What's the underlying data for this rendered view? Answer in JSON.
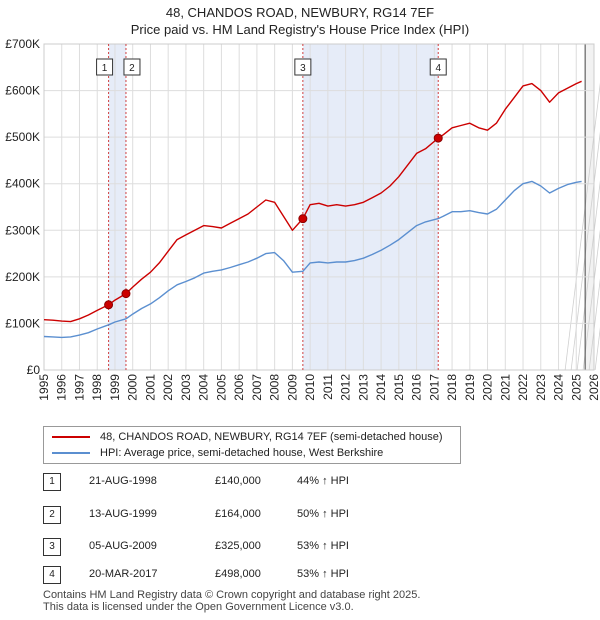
{
  "chart_data": {
    "type": "line",
    "title": "48, CHANDOS ROAD, NEWBURY, RG14 7EF",
    "subtitle": "Price paid vs. HM Land Registry's House Price Index (HPI)",
    "xlim": [
      1995,
      2026
    ],
    "ylim": [
      0,
      700000
    ],
    "y_ticks": [
      0,
      100000,
      200000,
      300000,
      400000,
      500000,
      600000,
      700000
    ],
    "y_tick_labels": [
      "£0",
      "£100K",
      "£200K",
      "£300K",
      "£400K",
      "£500K",
      "£600K",
      "£700K"
    ],
    "x_ticks": [
      1995,
      1996,
      1997,
      1998,
      1999,
      2000,
      2001,
      2002,
      2003,
      2004,
      2005,
      2006,
      2007,
      2008,
      2009,
      2010,
      2011,
      2012,
      2013,
      2014,
      2015,
      2016,
      2017,
      2018,
      2019,
      2020,
      2021,
      2022,
      2023,
      2024,
      2025,
      2026
    ],
    "x_tick_labels": [
      "1995",
      "1996",
      "1997",
      "1998",
      "1999",
      "2000",
      "2001",
      "2002",
      "2003",
      "2004",
      "2005",
      "2006",
      "2007",
      "2008",
      "2009",
      "2010",
      "2011",
      "2012",
      "2013",
      "2014",
      "2015",
      "2016",
      "2017",
      "2018",
      "2019",
      "2020",
      "2021",
      "2022",
      "2023",
      "2024",
      "2025",
      "2026"
    ],
    "grid": true,
    "shaded_ranges": [
      [
        1998.64,
        1999.62
      ],
      [
        2009.59,
        2017.22
      ]
    ],
    "future_from": 2025.5,
    "series": [
      {
        "name": "48, CHANDOS ROAD, NEWBURY, RG14 7EF (semi-detached house)",
        "color": "#cc0000",
        "x": [
          1995,
          1995.5,
          1996,
          1996.5,
          1997,
          1997.5,
          1998,
          1998.64,
          1999,
          1999.62,
          2000,
          2000.5,
          2001,
          2001.5,
          2002,
          2002.5,
          2003,
          2003.5,
          2004,
          2004.5,
          2005,
          2005.5,
          2006,
          2006.5,
          2007,
          2007.5,
          2008,
          2008.5,
          2009,
          2009.59,
          2010,
          2010.5,
          2011,
          2011.5,
          2012,
          2012.5,
          2013,
          2013.5,
          2014,
          2014.5,
          2015,
          2015.5,
          2016,
          2016.5,
          2017.22,
          2017.5,
          2018,
          2018.5,
          2019,
          2019.5,
          2020,
          2020.5,
          2021,
          2021.5,
          2022,
          2022.5,
          2023,
          2023.5,
          2024,
          2024.5,
          2025,
          2025.3
        ],
        "values": [
          108000,
          107000,
          105000,
          104000,
          110000,
          118000,
          128000,
          140000,
          150000,
          164000,
          178000,
          195000,
          210000,
          230000,
          255000,
          280000,
          290000,
          300000,
          310000,
          308000,
          305000,
          315000,
          325000,
          335000,
          350000,
          365000,
          360000,
          330000,
          300000,
          325000,
          355000,
          358000,
          352000,
          355000,
          352000,
          355000,
          360000,
          370000,
          380000,
          395000,
          415000,
          440000,
          465000,
          475000,
          498000,
          505000,
          520000,
          525000,
          530000,
          520000,
          515000,
          530000,
          560000,
          585000,
          610000,
          615000,
          600000,
          575000,
          595000,
          605000,
          615000,
          620000
        ]
      },
      {
        "name": "HPI: Average price, semi-detached house, West Berkshire",
        "color": "#5b8fd0",
        "x": [
          1995,
          1995.5,
          1996,
          1996.5,
          1997,
          1997.5,
          1998,
          1998.64,
          1999,
          1999.62,
          2000,
          2000.5,
          2001,
          2001.5,
          2002,
          2002.5,
          2003,
          2003.5,
          2004,
          2004.5,
          2005,
          2005.5,
          2006,
          2006.5,
          2007,
          2007.5,
          2008,
          2008.5,
          2009,
          2009.59,
          2010,
          2010.5,
          2011,
          2011.5,
          2012,
          2012.5,
          2013,
          2013.5,
          2014,
          2014.5,
          2015,
          2015.5,
          2016,
          2016.5,
          2017.22,
          2017.5,
          2018,
          2018.5,
          2019,
          2019.5,
          2020,
          2020.5,
          2021,
          2021.5,
          2022,
          2022.5,
          2023,
          2023.5,
          2024,
          2024.5,
          2025,
          2025.3
        ],
        "values": [
          72000,
          71000,
          70000,
          71000,
          75000,
          80000,
          88000,
          97000,
          103000,
          110000,
          120000,
          132000,
          142000,
          155000,
          170000,
          183000,
          190000,
          198000,
          208000,
          212000,
          215000,
          220000,
          226000,
          232000,
          240000,
          250000,
          252000,
          235000,
          210000,
          212000,
          230000,
          232000,
          230000,
          232000,
          232000,
          235000,
          240000,
          248000,
          257000,
          268000,
          280000,
          295000,
          310000,
          318000,
          325000,
          330000,
          340000,
          340000,
          342000,
          338000,
          335000,
          345000,
          365000,
          385000,
          400000,
          405000,
          395000,
          380000,
          390000,
          398000,
          403000,
          405000
        ]
      }
    ],
    "sales": [
      {
        "label": "1",
        "x": 1998.64,
        "value": 140000,
        "date": "21-AUG-1998",
        "price": "£140,000",
        "hpi": "44% ↑ HPI"
      },
      {
        "label": "2",
        "x": 1999.62,
        "value": 164000,
        "date": "13-AUG-1999",
        "price": "£164,000",
        "hpi": "50% ↑ HPI"
      },
      {
        "label": "3",
        "x": 2009.59,
        "value": 325000,
        "date": "05-AUG-2009",
        "price": "£325,000",
        "hpi": "53% ↑ HPI"
      },
      {
        "label": "4",
        "x": 2017.22,
        "value": 498000,
        "date": "20-MAR-2017",
        "price": "£498,000",
        "hpi": "53% ↑ HPI"
      }
    ]
  },
  "legend": {
    "property_label": "48, CHANDOS ROAD, NEWBURY, RG14 7EF (semi-detached house)",
    "hpi_label": "HPI: Average price, semi-detached house, West Berkshire",
    "property_color": "#cc0000",
    "hpi_color": "#5b8fd0"
  },
  "footer": {
    "line1": "Contains HM Land Registry data © Crown copyright and database right 2025.",
    "line2": "This data is licensed under the Open Government Licence v3.0."
  }
}
